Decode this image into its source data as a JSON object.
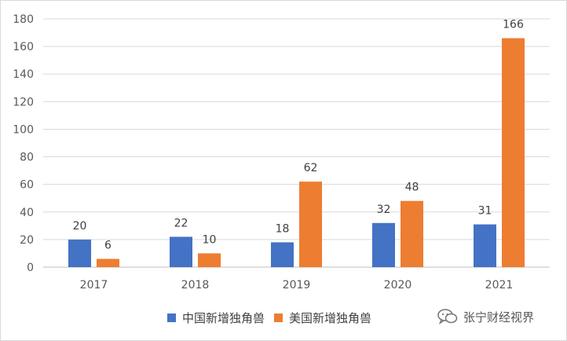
{
  "chart_data": {
    "type": "bar",
    "categories": [
      "2017",
      "2018",
      "2019",
      "2020",
      "2021"
    ],
    "series": [
      {
        "name": "中国新增独角兽",
        "values": [
          20,
          22,
          18,
          32,
          31
        ],
        "color": "#4472C4"
      },
      {
        "name": "美国新增独角兽",
        "values": [
          6,
          10,
          62,
          48,
          166
        ],
        "color": "#ED7D31"
      }
    ],
    "ylim": [
      0,
      180
    ],
    "yticks": [
      0,
      20,
      40,
      60,
      80,
      100,
      120,
      140,
      160,
      180
    ],
    "grid": true,
    "legend_position": "bottom"
  },
  "watermark": {
    "text": "张宁财经视界",
    "icon": "wechat-icon"
  }
}
